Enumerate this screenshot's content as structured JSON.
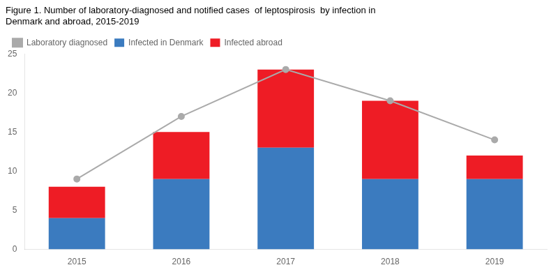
{
  "chart_data": {
    "type": "bar",
    "title": "Figure 1. Number of laboratory-diagnosed and notified cases  of leptospirosis  by infection in\nDenmark and abroad, 2015-2019",
    "categories": [
      "2015",
      "2016",
      "2017",
      "2018",
      "2019"
    ],
    "series": [
      {
        "name": "Infected in Denmark",
        "type": "bar",
        "color": "#3b7bbf",
        "values": [
          4,
          9,
          13,
          9,
          9
        ]
      },
      {
        "name": "Infected abroad",
        "type": "bar",
        "color": "#ee1c25",
        "values": [
          4,
          6,
          10,
          10,
          3
        ]
      },
      {
        "name": "Laboratory diagnosed",
        "type": "line",
        "color": "#aaaaaa",
        "marker": "circle",
        "line_style": "solid",
        "values": [
          9,
          17,
          23,
          19,
          14
        ]
      }
    ],
    "stacked": true,
    "ylim": [
      0,
      25
    ],
    "yticks": [
      0,
      5,
      10,
      15,
      20,
      25
    ],
    "grid": false,
    "legend": "top-left"
  }
}
